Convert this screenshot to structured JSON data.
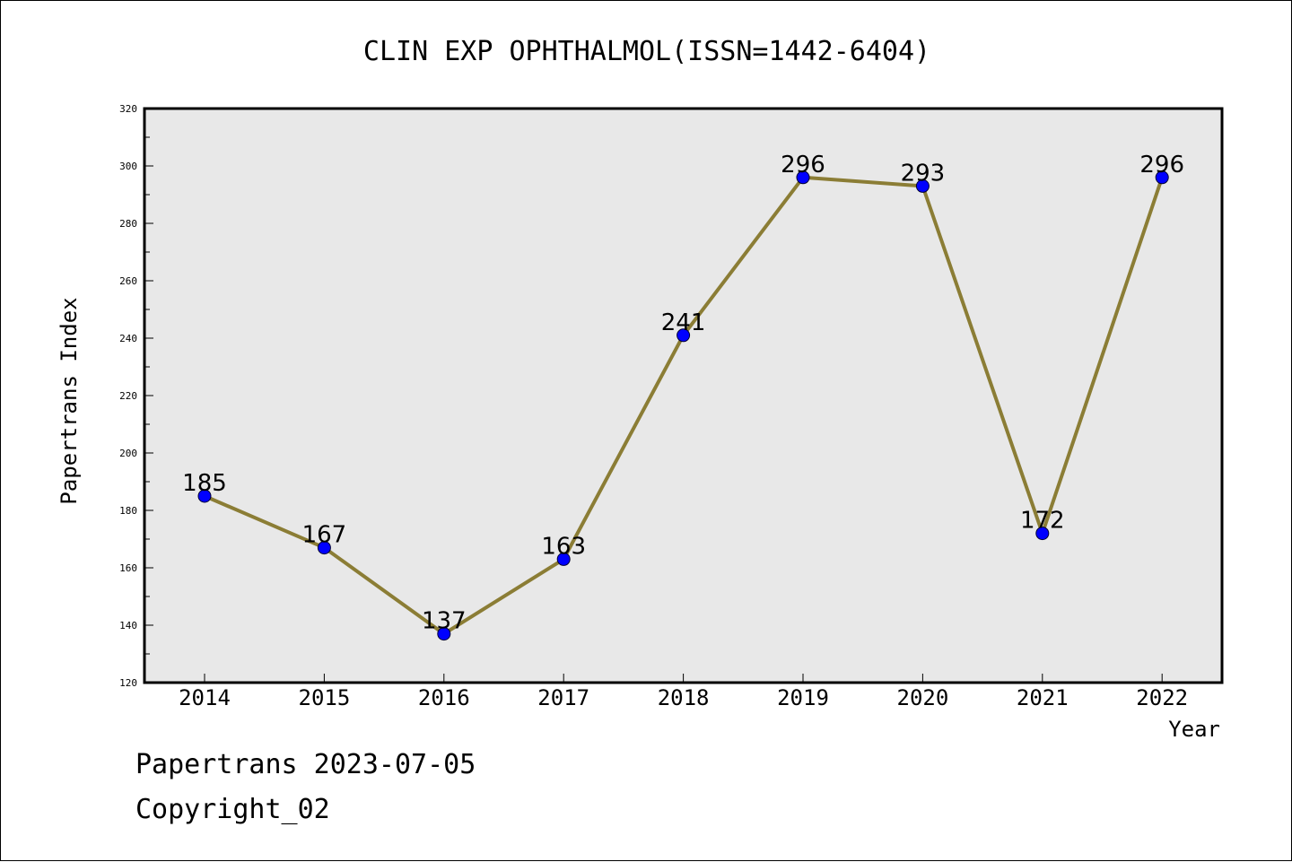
{
  "chart_data": {
    "type": "line",
    "title": "CLIN EXP OPHTHALMOL(ISSN=1442-6404)",
    "xlabel": "Year",
    "ylabel": "Papertrans Index",
    "categories": [
      "2014",
      "2015",
      "2016",
      "2017",
      "2018",
      "2019",
      "2020",
      "2021",
      "2022"
    ],
    "values": [
      185,
      167,
      137,
      163,
      241,
      296,
      293,
      172,
      296
    ],
    "ylim": [
      120,
      320
    ],
    "yticks": [
      120,
      140,
      160,
      180,
      200,
      220,
      240,
      260,
      280,
      300,
      320
    ],
    "grid": false,
    "legend": "none",
    "colors": {
      "line": "#8b7d35",
      "marker": "#0000ff",
      "plot_background": "#e8e8e8"
    }
  },
  "footer": {
    "line1": "Papertrans 2023-07-05",
    "line2": "Copyright_02"
  }
}
